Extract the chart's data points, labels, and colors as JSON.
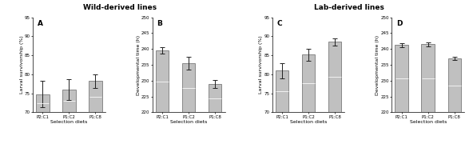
{
  "panel_A": {
    "label": "A",
    "ylabel": "Larval survivorship (%)",
    "xlabel": "Selection diets",
    "categories": [
      "P2:C1",
      "P1:C2",
      "P1:C8"
    ],
    "values": [
      74.8,
      76.0,
      78.2
    ],
    "errors": [
      3.5,
      2.8,
      1.8
    ],
    "ylim": [
      70,
      95
    ],
    "yticks": [
      70,
      75,
      80,
      85,
      90,
      95
    ]
  },
  "panel_B": {
    "label": "B",
    "ylabel": "Developmental time (h)",
    "xlabel": "Selection diets",
    "categories": [
      "P2:C1",
      "P1:C2",
      "P1:C8"
    ],
    "values": [
      239.5,
      235.5,
      229.0
    ],
    "errors": [
      1.0,
      2.0,
      1.3
    ],
    "ylim": [
      220,
      250
    ],
    "yticks": [
      220,
      225,
      230,
      235,
      240,
      245,
      250
    ]
  },
  "panel_C": {
    "label": "C",
    "ylabel": "Larval survivorship (%)",
    "xlabel": "Selection diets",
    "categories": [
      "P2:C1",
      "P1:C2",
      "P1:C8"
    ],
    "values": [
      81.0,
      85.2,
      88.5
    ],
    "errors": [
      2.0,
      1.6,
      0.9
    ],
    "ylim": [
      70,
      95
    ],
    "yticks": [
      70,
      75,
      80,
      85,
      90,
      95
    ]
  },
  "panel_D": {
    "label": "D",
    "ylabel": "Developmental time (h)",
    "xlabel": "Selection diets",
    "categories": [
      "P2:C1",
      "P1:C2",
      "P1:C8"
    ],
    "values": [
      241.2,
      241.5,
      237.0
    ],
    "errors": [
      0.7,
      0.6,
      0.5
    ],
    "ylim": [
      220,
      250
    ],
    "yticks": [
      220,
      225,
      230,
      235,
      240,
      245,
      250
    ]
  },
  "bar_color": "#c0c0c0",
  "bar_edgecolor": "#666666",
  "bar_width": 0.5,
  "capsize": 2,
  "errorbar_color": "#222222",
  "errorbar_lw": 0.7,
  "label_fontsize": 4.5,
  "tick_fontsize": 4.0,
  "title_fontsize": 6.5,
  "panel_label_fontsize": 6.5,
  "wild_title": "Wild-derived lines",
  "lab_title": "Lab-derived lines",
  "background_color": "#ffffff"
}
